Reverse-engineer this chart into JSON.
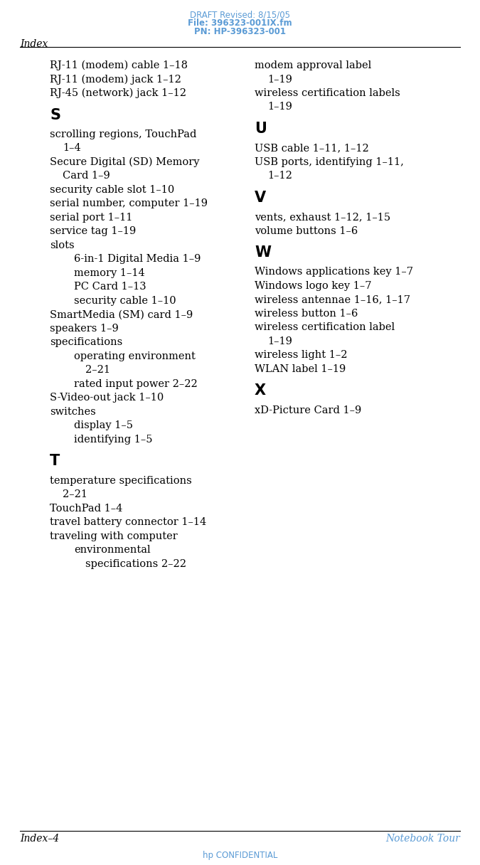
{
  "header_line1": "DRAFT Revised: 8/15/05",
  "header_line2": "File: 396323-001IX.fm",
  "header_line3": "PN: HP-396323-001",
  "header_color": "#5b9bd5",
  "top_label": "Index",
  "bottom_left": "Index–4",
  "bottom_right": "Notebook Tour",
  "bottom_center": "hp CONFIDENTIAL",
  "bg_color": "#ffffff",
  "text_color": "#000000",
  "left_col": [
    {
      "text": "RJ-11 (modem) cable 1–18",
      "indent": 0,
      "section": false
    },
    {
      "text": "RJ-11 (modem) jack 1–12",
      "indent": 0,
      "section": false
    },
    {
      "text": "RJ-45 (network) jack 1–12",
      "indent": 0,
      "section": false
    },
    {
      "text": "S",
      "indent": 0,
      "section": true
    },
    {
      "text": "scrolling regions, TouchPad",
      "indent": 0,
      "section": false
    },
    {
      "text": "1–4",
      "indent": 1,
      "section": false
    },
    {
      "text": "Secure Digital (SD) Memory",
      "indent": 0,
      "section": false
    },
    {
      "text": "Card 1–9",
      "indent": 1,
      "section": false
    },
    {
      "text": "security cable slot 1–10",
      "indent": 0,
      "section": false
    },
    {
      "text": "serial number, computer 1–19",
      "indent": 0,
      "section": false
    },
    {
      "text": "serial port 1–11",
      "indent": 0,
      "section": false
    },
    {
      "text": "service tag 1–19",
      "indent": 0,
      "section": false
    },
    {
      "text": "slots",
      "indent": 0,
      "section": false
    },
    {
      "text": "6-in-1 Digital Media 1–9",
      "indent": 2,
      "section": false
    },
    {
      "text": "memory 1–14",
      "indent": 2,
      "section": false
    },
    {
      "text": "PC Card 1–13",
      "indent": 2,
      "section": false
    },
    {
      "text": "security cable 1–10",
      "indent": 2,
      "section": false
    },
    {
      "text": "SmartMedia (SM) card 1–9",
      "indent": 0,
      "section": false
    },
    {
      "text": "speakers 1–9",
      "indent": 0,
      "section": false
    },
    {
      "text": "specifications",
      "indent": 0,
      "section": false
    },
    {
      "text": "operating environment",
      "indent": 2,
      "section": false
    },
    {
      "text": "2–21",
      "indent": 3,
      "section": false
    },
    {
      "text": "rated input power 2–22",
      "indent": 2,
      "section": false
    },
    {
      "text": "S-Video-out jack 1–10",
      "indent": 0,
      "section": false
    },
    {
      "text": "switches",
      "indent": 0,
      "section": false
    },
    {
      "text": "display 1–5",
      "indent": 2,
      "section": false
    },
    {
      "text": "identifying 1–5",
      "indent": 2,
      "section": false
    },
    {
      "text": "T",
      "indent": 0,
      "section": true
    },
    {
      "text": "temperature specifications",
      "indent": 0,
      "section": false
    },
    {
      "text": "2–21",
      "indent": 1,
      "section": false
    },
    {
      "text": "TouchPad 1–4",
      "indent": 0,
      "section": false
    },
    {
      "text": "travel battery connector 1–14",
      "indent": 0,
      "section": false
    },
    {
      "text": "traveling with computer",
      "indent": 0,
      "section": false
    },
    {
      "text": "environmental",
      "indent": 2,
      "section": false
    },
    {
      "text": "specifications 2–22",
      "indent": 3,
      "section": false
    }
  ],
  "right_col": [
    {
      "text": "modem approval label",
      "indent": 0,
      "section": false
    },
    {
      "text": "1–19",
      "indent": 1,
      "section": false
    },
    {
      "text": "wireless certification labels",
      "indent": 0,
      "section": false
    },
    {
      "text": "1–19",
      "indent": 1,
      "section": false
    },
    {
      "text": "U",
      "indent": 0,
      "section": true
    },
    {
      "text": "USB cable 1–11, 1–12",
      "indent": 0,
      "section": false
    },
    {
      "text": "USB ports, identifying 1–11,",
      "indent": 0,
      "section": false
    },
    {
      "text": "1–12",
      "indent": 1,
      "section": false
    },
    {
      "text": "V",
      "indent": 0,
      "section": true
    },
    {
      "text": "vents, exhaust 1–12, 1–15",
      "indent": 0,
      "section": false
    },
    {
      "text": "volume buttons 1–6",
      "indent": 0,
      "section": false
    },
    {
      "text": "W",
      "indent": 0,
      "section": true
    },
    {
      "text": "Windows applications key 1–7",
      "indent": 0,
      "section": false
    },
    {
      "text": "Windows logo key 1–7",
      "indent": 0,
      "section": false
    },
    {
      "text": "wireless antennae 1–16, 1–17",
      "indent": 0,
      "section": false
    },
    {
      "text": "wireless button 1–6",
      "indent": 0,
      "section": false
    },
    {
      "text": "wireless certification label",
      "indent": 0,
      "section": false
    },
    {
      "text": "1–19",
      "indent": 1,
      "section": false
    },
    {
      "text": "wireless light 1–2",
      "indent": 0,
      "section": false
    },
    {
      "text": "WLAN label 1–19",
      "indent": 0,
      "section": false
    },
    {
      "text": "X",
      "indent": 0,
      "section": true
    },
    {
      "text": "xD-Picture Card 1–9",
      "indent": 0,
      "section": false
    }
  ]
}
